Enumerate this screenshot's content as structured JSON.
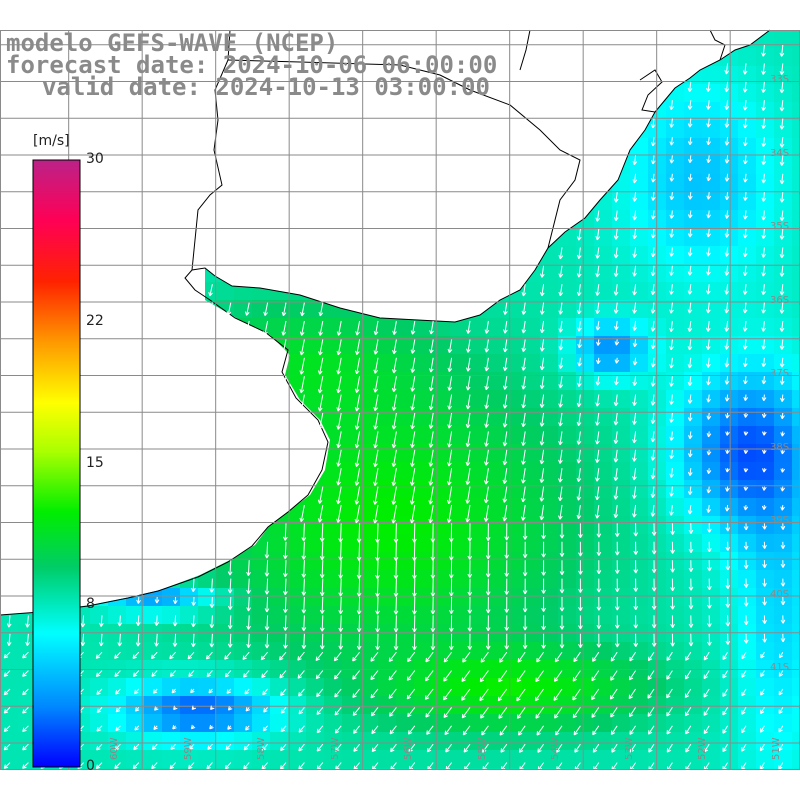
{
  "title": {
    "line1": "modelo GEFS-WAVE (NCEP)",
    "line2": "forecast date: 2024-10-06 06:00:00",
    "line3": "valid date: 2024-10-13 03:00:00"
  },
  "colorbar": {
    "unit": "[m/s]",
    "ticks": [
      "30",
      "22",
      "15",
      "8",
      "0"
    ],
    "tick_values": [
      30,
      22,
      15,
      8,
      0
    ],
    "range": [
      0,
      30
    ],
    "stops": [
      "#0000ff",
      "#0088ff",
      "#00ffff",
      "#00cc66",
      "#00ee00",
      "#aaff00",
      "#ffff00",
      "#ff9900",
      "#ff2200",
      "#ff0055",
      "#bb2288"
    ]
  },
  "map": {
    "lat_labels": [
      "33S",
      "34S",
      "35S",
      "36S",
      "37S",
      "38S",
      "39S",
      "40S",
      "41S"
    ],
    "lat_label_values": [
      33,
      34,
      35,
      36,
      37,
      38,
      39,
      40,
      41
    ],
    "lon_labels": [
      "60W",
      "59W",
      "58W",
      "57W",
      "56W",
      "55W",
      "54W",
      "53W",
      "52W",
      "51W"
    ],
    "lon_label_values": [
      60,
      59,
      58,
      57,
      56,
      55,
      54,
      53,
      52,
      51
    ],
    "land_color": "#ffffff",
    "coast_color": "#000000",
    "grid_color": "#8a8a8a",
    "arrow_color": "#ffffff"
  }
}
